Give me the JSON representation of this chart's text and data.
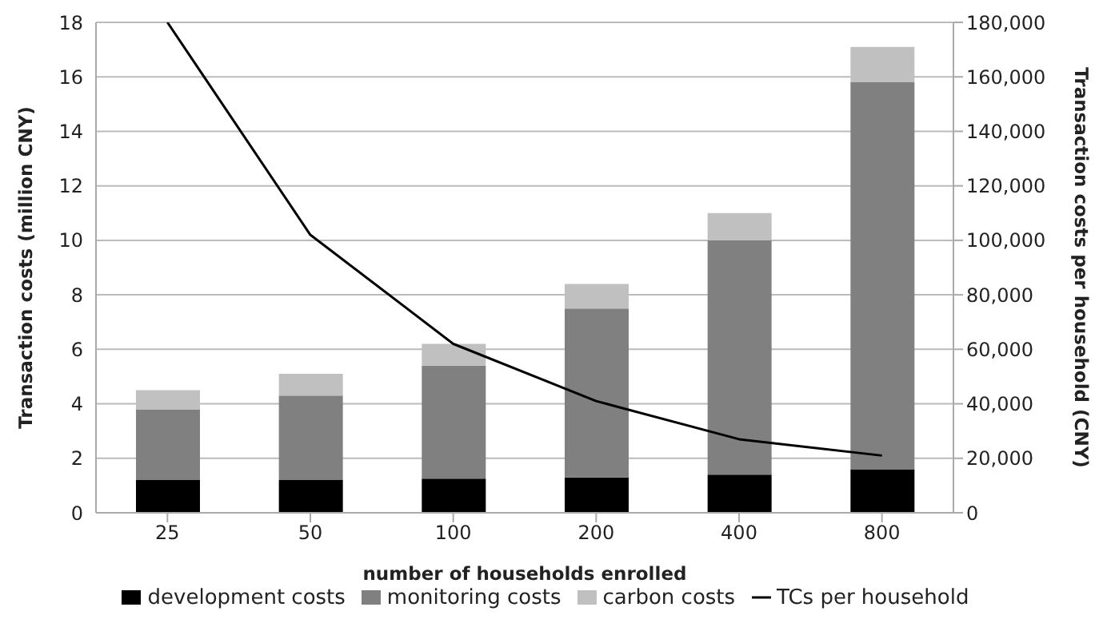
{
  "chart_data": {
    "type": "bar",
    "stacked": true,
    "categories": [
      "25",
      "50",
      "100",
      "200",
      "400",
      "800"
    ],
    "xlabel": "number of households enrolled",
    "ylabel": "Transaction costs (million CNY)",
    "y2label": "Transaction costs per household (CNY)",
    "ylim": [
      0,
      18
    ],
    "yticks": [
      0,
      2,
      4,
      6,
      8,
      10,
      12,
      14,
      16,
      18
    ],
    "y2lim": [
      0,
      180000
    ],
    "y2ticks": [
      {
        "value": 0,
        "label": "0"
      },
      {
        "value": 20000,
        "label": "20,000"
      },
      {
        "value": 40000,
        "label": "40,000"
      },
      {
        "value": 60000,
        "label": "60,000"
      },
      {
        "value": 80000,
        "label": "80,000"
      },
      {
        "value": 100000,
        "label": "100,000"
      },
      {
        "value": 120000,
        "label": "120,000"
      },
      {
        "value": 140000,
        "label": "140,000"
      },
      {
        "value": 160000,
        "label": "160,000"
      },
      {
        "value": 180000,
        "label": "180,000"
      }
    ],
    "grid": "y",
    "legend": "bottom",
    "marker": "none",
    "series": [
      {
        "name": "development costs",
        "color": "#000000",
        "values": [
          1.2,
          1.2,
          1.25,
          1.3,
          1.4,
          1.6
        ]
      },
      {
        "name": "monitoring costs",
        "color": "#808080",
        "values": [
          2.6,
          3.1,
          4.15,
          6.2,
          8.6,
          14.2
        ]
      },
      {
        "name": "carbon costs",
        "color": "#c0c0c0",
        "values": [
          0.7,
          0.8,
          0.8,
          0.9,
          1.0,
          1.3
        ]
      },
      {
        "name": "TCs per household",
        "type": "line",
        "axis": "y2",
        "color": "#000000",
        "values": [
          180000,
          102000,
          62000,
          41000,
          27000,
          21000
        ]
      }
    ]
  }
}
